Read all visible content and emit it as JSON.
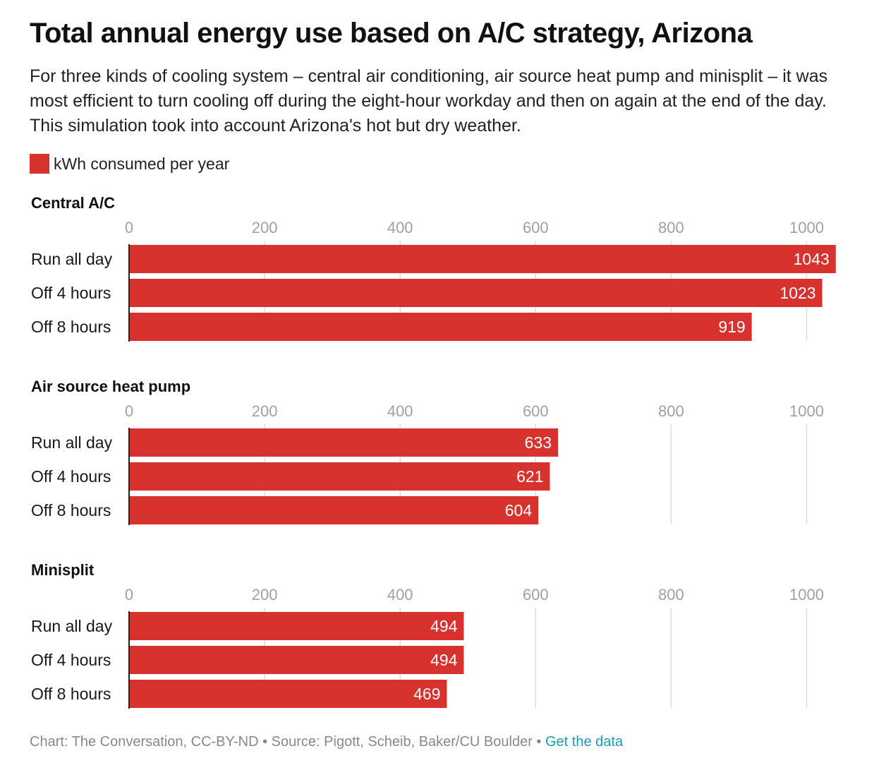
{
  "title": "Total annual energy use based on A/C strategy, Arizona",
  "subtitle": "For three kinds of cooling system – central air conditioning, air source heat pump and minisplit – it was most efficient to turn cooling off during the eight-hour workday and then on again at the end of the day. This simulation took into account Arizona's hot but dry weather.",
  "legend": {
    "label": "kWh consumed per year",
    "color": "#d7322d"
  },
  "footer": {
    "credit": "Chart: The Conversation, CC-BY-ND • Source: Pigott, Scheib, Baker/CU Boulder • ",
    "link_text": "Get the data"
  },
  "colors": {
    "bar": "#d7322d",
    "bar_label": "#ffffff",
    "tick": "#a0a0a0",
    "grid": "#dcdcdc",
    "axis": "#222222"
  },
  "chart_data": [
    {
      "type": "bar",
      "orientation": "horizontal",
      "title": "Central A/C",
      "categories": [
        "Run all day",
        "Off 4 hours",
        "Off 8 hours"
      ],
      "values": [
        1043,
        1023,
        919
      ],
      "xlim": [
        0,
        1000
      ],
      "ticks": [
        0,
        200,
        400,
        600,
        800,
        1000
      ],
      "grid": true
    },
    {
      "type": "bar",
      "orientation": "horizontal",
      "title": "Air source heat pump",
      "categories": [
        "Run all day",
        "Off 4 hours",
        "Off 8 hours"
      ],
      "values": [
        633,
        621,
        604
      ],
      "xlim": [
        0,
        1000
      ],
      "ticks": [
        0,
        200,
        400,
        600,
        800,
        1000
      ],
      "grid": true
    },
    {
      "type": "bar",
      "orientation": "horizontal",
      "title": "Minisplit",
      "categories": [
        "Run all day",
        "Off 4 hours",
        "Off 8 hours"
      ],
      "values": [
        494,
        494,
        469
      ],
      "xlim": [
        0,
        1000
      ],
      "ticks": [
        0,
        200,
        400,
        600,
        800,
        1000
      ],
      "grid": true
    }
  ]
}
